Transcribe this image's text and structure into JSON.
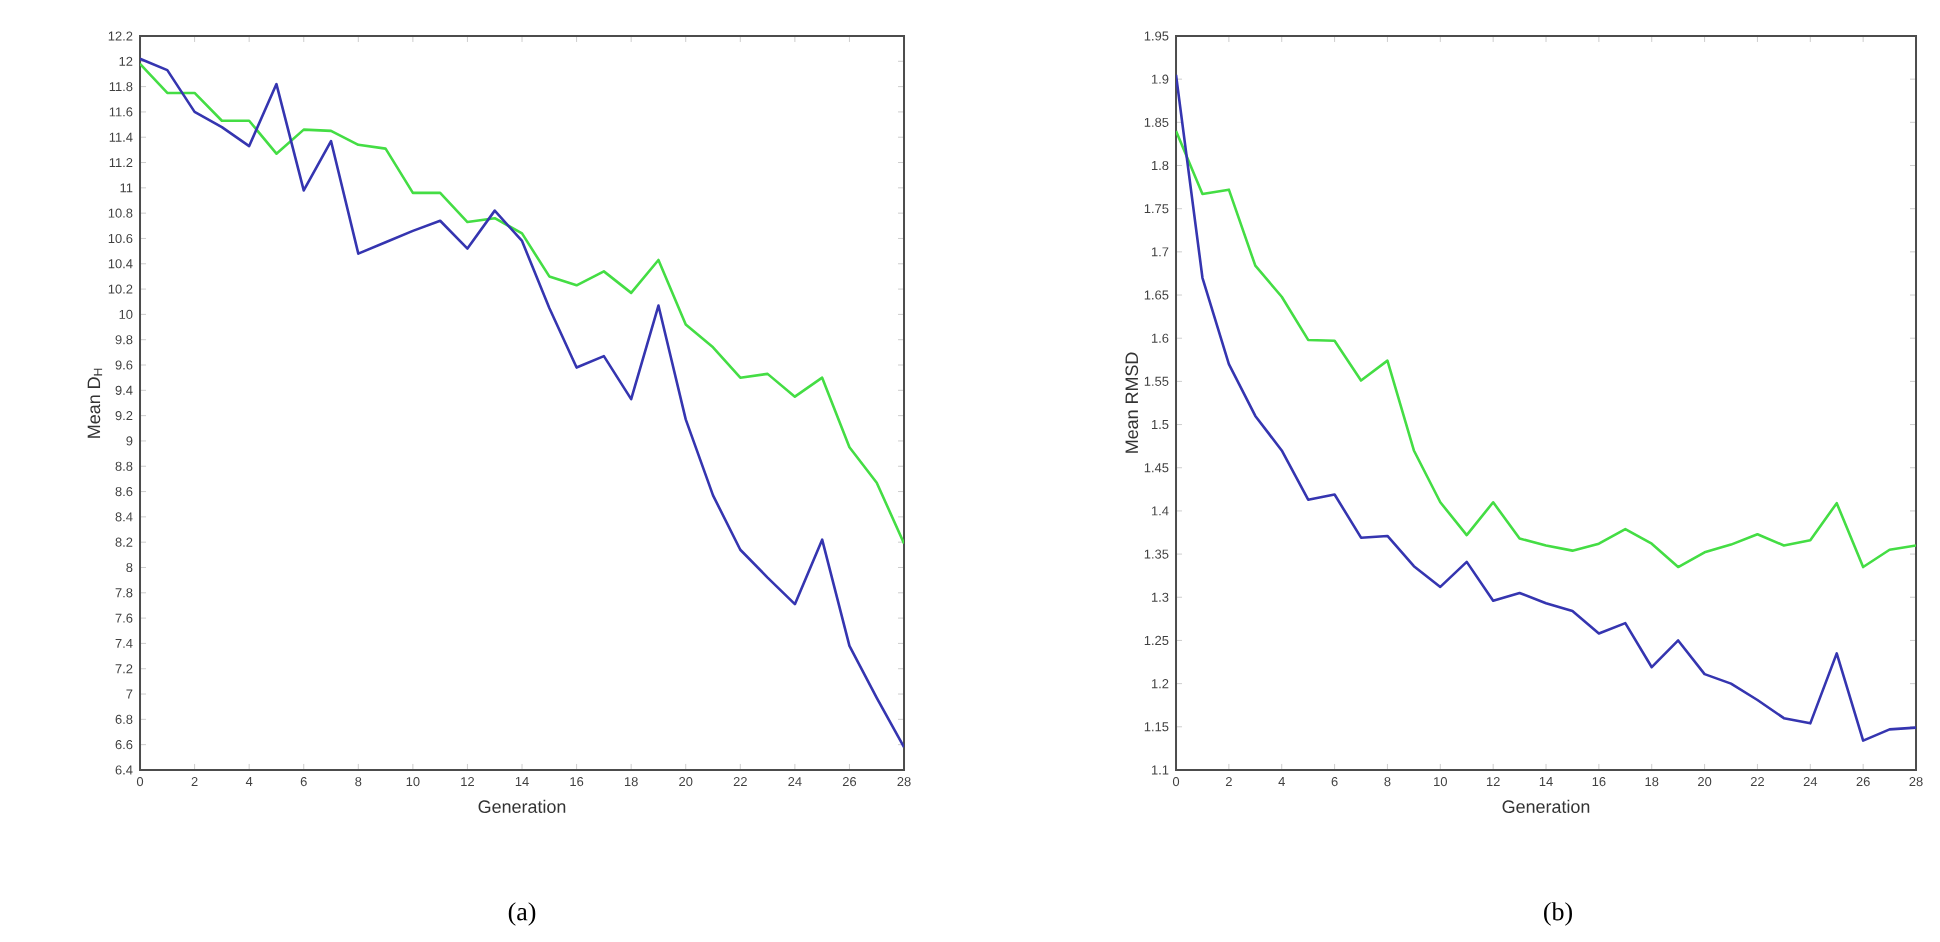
{
  "chart_data": [
    {
      "type": "line",
      "xlabel": "Generation",
      "ylabel": "Mean D$_{H}$",
      "annotations": [
        "(a)"
      ],
      "grid": false,
      "x": [
        0,
        1,
        2,
        3,
        4,
        5,
        6,
        7,
        8,
        9,
        10,
        11,
        12,
        13,
        14,
        15,
        16,
        17,
        18,
        19,
        20,
        21,
        22,
        23,
        24,
        25,
        26,
        27,
        28
      ],
      "xlim": [
        0,
        28
      ],
      "xticks": [
        0,
        2,
        4,
        6,
        8,
        10,
        12,
        14,
        16,
        18,
        20,
        22,
        24,
        26,
        28
      ],
      "ylim": [
        6.4,
        12.2
      ],
      "yticks": [
        6.4,
        6.6,
        6.8,
        7,
        7.2,
        7.4,
        7.6,
        7.8,
        8,
        8.2,
        8.4,
        8.6,
        8.8,
        9,
        9.2,
        9.4,
        9.6,
        9.8,
        10,
        10.2,
        10.4,
        10.6,
        10.8,
        11,
        11.2,
        11.4,
        11.6,
        11.8,
        12,
        12.2
      ],
      "series": [
        {
          "color": "#44dd44",
          "values": [
            11.98,
            11.75,
            11.75,
            11.53,
            11.53,
            11.27,
            11.46,
            11.45,
            11.34,
            11.31,
            10.96,
            10.96,
            10.73,
            10.76,
            10.64,
            10.3,
            10.23,
            10.34,
            10.17,
            10.43,
            9.92,
            9.74,
            9.5,
            9.53,
            9.35,
            9.5,
            8.95,
            8.67,
            8.19
          ]
        },
        {
          "color": "#3535b0",
          "values": [
            12.02,
            11.93,
            11.6,
            11.48,
            11.33,
            11.82,
            10.98,
            11.37,
            10.48,
            10.57,
            10.66,
            10.74,
            10.52,
            10.82,
            10.58,
            10.05,
            9.58,
            9.67,
            9.33,
            10.07,
            9.17,
            8.57,
            8.14,
            7.92,
            7.71,
            8.22,
            7.38,
            6.97,
            6.58
          ]
        }
      ]
    },
    {
      "type": "line",
      "xlabel": "Generation",
      "ylabel": "Mean RMSD",
      "annotations": [
        "(b)"
      ],
      "grid": false,
      "x": [
        0,
        1,
        2,
        3,
        4,
        5,
        6,
        7,
        8,
        9,
        10,
        11,
        12,
        13,
        14,
        15,
        16,
        17,
        18,
        19,
        20,
        21,
        22,
        23,
        24,
        25,
        26,
        27,
        28
      ],
      "xlim": [
        0,
        28
      ],
      "xticks": [
        0,
        2,
        4,
        6,
        8,
        10,
        12,
        14,
        16,
        18,
        20,
        22,
        24,
        26,
        28
      ],
      "ylim": [
        1.1,
        1.95
      ],
      "yticks": [
        1.1,
        1.15,
        1.2,
        1.25,
        1.3,
        1.35,
        1.4,
        1.45,
        1.5,
        1.55,
        1.6,
        1.65,
        1.7,
        1.75,
        1.8,
        1.85,
        1.9,
        1.95
      ],
      "series": [
        {
          "color": "#44dd44",
          "values": [
            1.84,
            1.767,
            1.772,
            1.684,
            1.648,
            1.598,
            1.597,
            1.551,
            1.574,
            1.47,
            1.41,
            1.372,
            1.41,
            1.368,
            1.36,
            1.354,
            1.362,
            1.379,
            1.362,
            1.335,
            1.352,
            1.361,
            1.373,
            1.36,
            1.366,
            1.409,
            1.335,
            1.355,
            1.36
          ]
        },
        {
          "color": "#3535b0",
          "values": [
            1.905,
            1.67,
            1.57,
            1.51,
            1.47,
            1.413,
            1.419,
            1.369,
            1.371,
            1.336,
            1.312,
            1.341,
            1.296,
            1.305,
            1.293,
            1.284,
            1.258,
            1.27,
            1.219,
            1.25,
            1.211,
            1.2,
            1.181,
            1.16,
            1.154,
            1.235,
            1.134,
            1.147,
            1.149
          ]
        }
      ]
    }
  ]
}
